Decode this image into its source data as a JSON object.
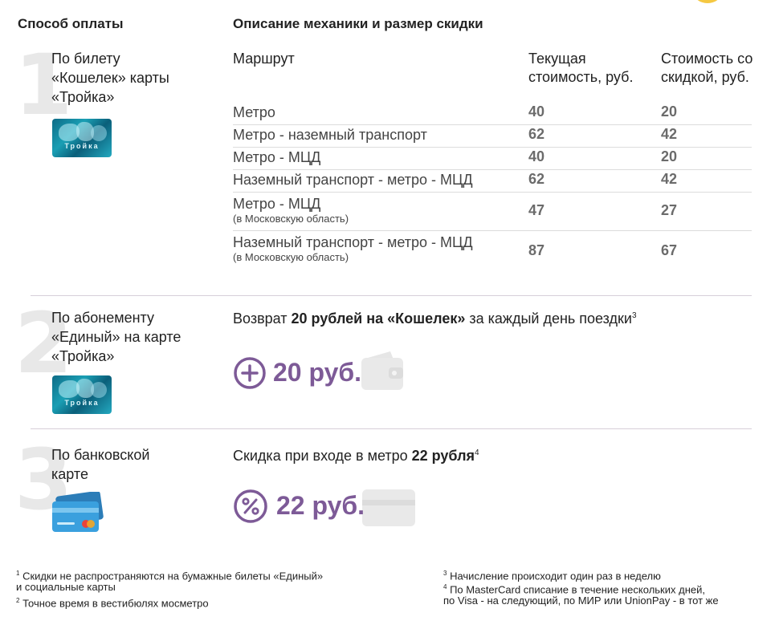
{
  "headers": {
    "payment_method": "Способ оплаты",
    "description": "Описание механики и размер скидки"
  },
  "methods": [
    {
      "number": "1",
      "label": "По билету «Кошелек» карты «Тройка»",
      "card": "Тройка"
    },
    {
      "number": "2",
      "label": "По абонементу «Единый» на карте «Тройка»",
      "card": "Тройка"
    },
    {
      "number": "3",
      "label": "По банковской карте"
    }
  ],
  "table": {
    "col_route": "Маршрут",
    "col_current": "Текущая стоимость, руб.",
    "col_discount": "Стоимость со скидкой, руб.",
    "rows": [
      {
        "route": "Метро",
        "sub": "",
        "current": "40",
        "discount": "20"
      },
      {
        "route": "Метро - наземный транспорт",
        "sub": "",
        "current": "62",
        "discount": "42"
      },
      {
        "route": "Метро - МЦД",
        "sub": "",
        "current": "40",
        "discount": "20"
      },
      {
        "route": "Наземный транспорт - метро - МЦД",
        "sub": "",
        "current": "62",
        "discount": "42"
      },
      {
        "route": "Метро - МЦД",
        "sub": "(в Московскую область)",
        "current": "47",
        "discount": "27"
      },
      {
        "route": "Наземный транспорт - метро - МЦД",
        "sub": "(в Московскую область)",
        "current": "87",
        "discount": "67"
      }
    ]
  },
  "section2": {
    "text_pre": "Возврат ",
    "text_bold": "20 рублей на «Кошелек»",
    "text_post": " за каждый день поездки",
    "sup": "3",
    "amount": "20 руб."
  },
  "section3": {
    "text_pre": "Скидка при входе в метро ",
    "text_bold": "22 рубля",
    "sup": "4",
    "amount": "22 руб."
  },
  "footnotes": {
    "f1_sup": "1",
    "f1_text": "Скидки не распространяются на бумажные билеты «Единый»",
    "f1_text2": "и социальные карты",
    "f2_sup": "2",
    "f2_text": "Точное время в вестибюлях мосметро",
    "f3_sup": "3",
    "f3_text": "Начисление происходит один раз в неделю",
    "f4_sup": "4",
    "f4_text": "По MasterCard списание в течение нескольких дней,",
    "f4_text2": "по Visa - на следующий, по МИР или UnionPay - в тот же"
  },
  "colors": {
    "accent_purple": "#7d5a97",
    "coin_yellow": "#f5c842"
  }
}
